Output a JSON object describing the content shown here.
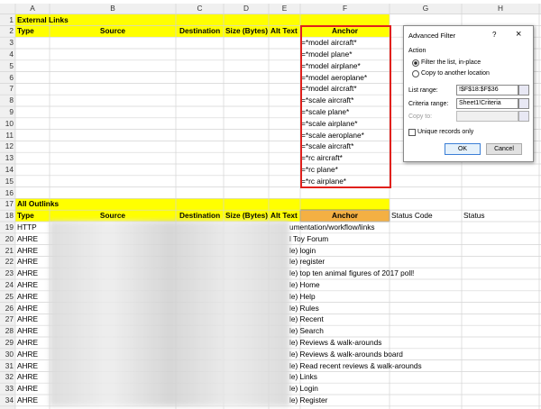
{
  "column_headers": [
    "A",
    "B",
    "C",
    "D",
    "E",
    "F",
    "G",
    "H"
  ],
  "row_numbers": [
    1,
    2,
    3,
    4,
    5,
    6,
    7,
    8,
    9,
    10,
    11,
    12,
    13,
    14,
    15,
    16,
    17,
    18,
    19,
    20,
    21,
    22,
    23,
    24,
    25,
    26,
    27,
    28,
    29,
    30,
    31,
    32,
    33,
    34
  ],
  "external_links": {
    "title": "External Links",
    "headers": [
      "Type",
      "Source",
      "Destination",
      "Size (Bytes)",
      "Alt Text",
      "Anchor"
    ],
    "criteria": [
      "=*model aircraft*",
      "=*model plane*",
      "=*model airplane*",
      "=*model aeroplane*",
      "=*model aircraft*",
      "=*scale aircraft*",
      "=*scale plane*",
      "=*scale airplane*",
      "=*scale aeroplane*",
      "=*scale aircraft*",
      "=*rc aircraft*",
      "=*rc plane*",
      "=*rc airplane*"
    ]
  },
  "all_outlinks": {
    "title": "All Outlinks",
    "headers": [
      "Type",
      "Source",
      "Destination",
      "Size (Bytes)",
      "Alt Text",
      "Anchor",
      "Status Code",
      "Status"
    ],
    "type_column": [
      "HTTP",
      "AHRE",
      "AHRE",
      "AHRE",
      "AHRE",
      "AHRE",
      "AHRE",
      "AHRE",
      "AHRE",
      "AHRE",
      "AHRE",
      "AHRE",
      "AHRE",
      "AHRE",
      "AHRE",
      "AHRE"
    ],
    "anchor_column": [
      "umentation/workflow/links",
      "l Toy Forum",
      "le) login",
      "le) register",
      "le) top ten animal figures of 2017 poll!",
      "le) Home",
      "le) Help",
      "le) Rules",
      "le) Recent",
      "le) Search",
      "le) Reviews & walk-arounds",
      "le) Reviews & walk-arounds board",
      "le) Read recent reviews & walk-arounds",
      "le) Links",
      "le) Login",
      "le) Register"
    ]
  },
  "dialog": {
    "title": "Advanced Filter",
    "help": "?",
    "close": "×",
    "action_label": "Action",
    "option_filter": "Filter the list, in-place",
    "option_copy": "Copy to another location",
    "list_range_label": "List range:",
    "list_range": "!$F$18:$F$36",
    "criteria_range_label": "Criteria range:",
    "criteria_range": "Sheet1!Criteria",
    "copy_to_label": "Copy to:",
    "unique_label": "Unique records only",
    "ok": "OK",
    "cancel": "Cancel"
  }
}
